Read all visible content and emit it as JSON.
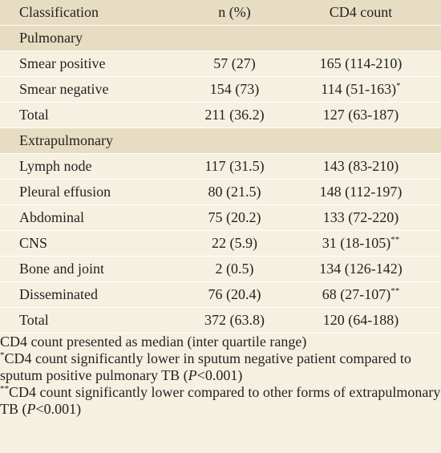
{
  "table": {
    "header": [
      "Classification",
      "n (%)",
      "CD4 count"
    ],
    "sections": [
      {
        "title": "Pulmonary",
        "rows": [
          {
            "label": "Smear positive",
            "n": "57 (27)",
            "cd4": "165 (114-210)"
          },
          {
            "label": "Smear negative",
            "n": "154 (73)",
            "cd4": "114 (51-163)",
            "mark": "*"
          },
          {
            "label": "Total",
            "n": "211 (36.2)",
            "cd4": "127 (63-187)"
          }
        ]
      },
      {
        "title": "Extrapulmonary",
        "rows": [
          {
            "label": "Lymph node",
            "n": "117 (31.5)",
            "cd4": "143 (83-210)"
          },
          {
            "label": "Pleural effusion",
            "n": "80 (21.5)",
            "cd4": "148 (112-197)"
          },
          {
            "label": "Abdominal",
            "n": "75 (20.2)",
            "cd4": "133 (72-220)"
          },
          {
            "label": "CNS",
            "n": "22 (5.9)",
            "cd4": "31 (18-105)",
            "mark": "**"
          },
          {
            "label": "Bone and joint",
            "n": "2 (0.5)",
            "cd4": "134 (126-142)"
          },
          {
            "label": "Disseminated",
            "n": "76 (20.4)",
            "cd4": "68 (27-107)",
            "mark": "**"
          },
          {
            "label": "Total",
            "n": "372 (63.8)",
            "cd4": "120 (64-188)"
          }
        ]
      }
    ],
    "footnotes": [
      {
        "text": "CD4 count presented as median (inter quartile range)"
      },
      {
        "sup": "*",
        "text": "CD4 count significantly lower in sputum negative patient compared to sputum positive pulmonary TB (",
        "italic": "P",
        "after": "<0.001)"
      },
      {
        "sup": "**",
        "text": "CD4 count significantly lower compared to other forms of extrapulmonary TB (",
        "italic": "P",
        "after": "<0.001)"
      }
    ]
  }
}
